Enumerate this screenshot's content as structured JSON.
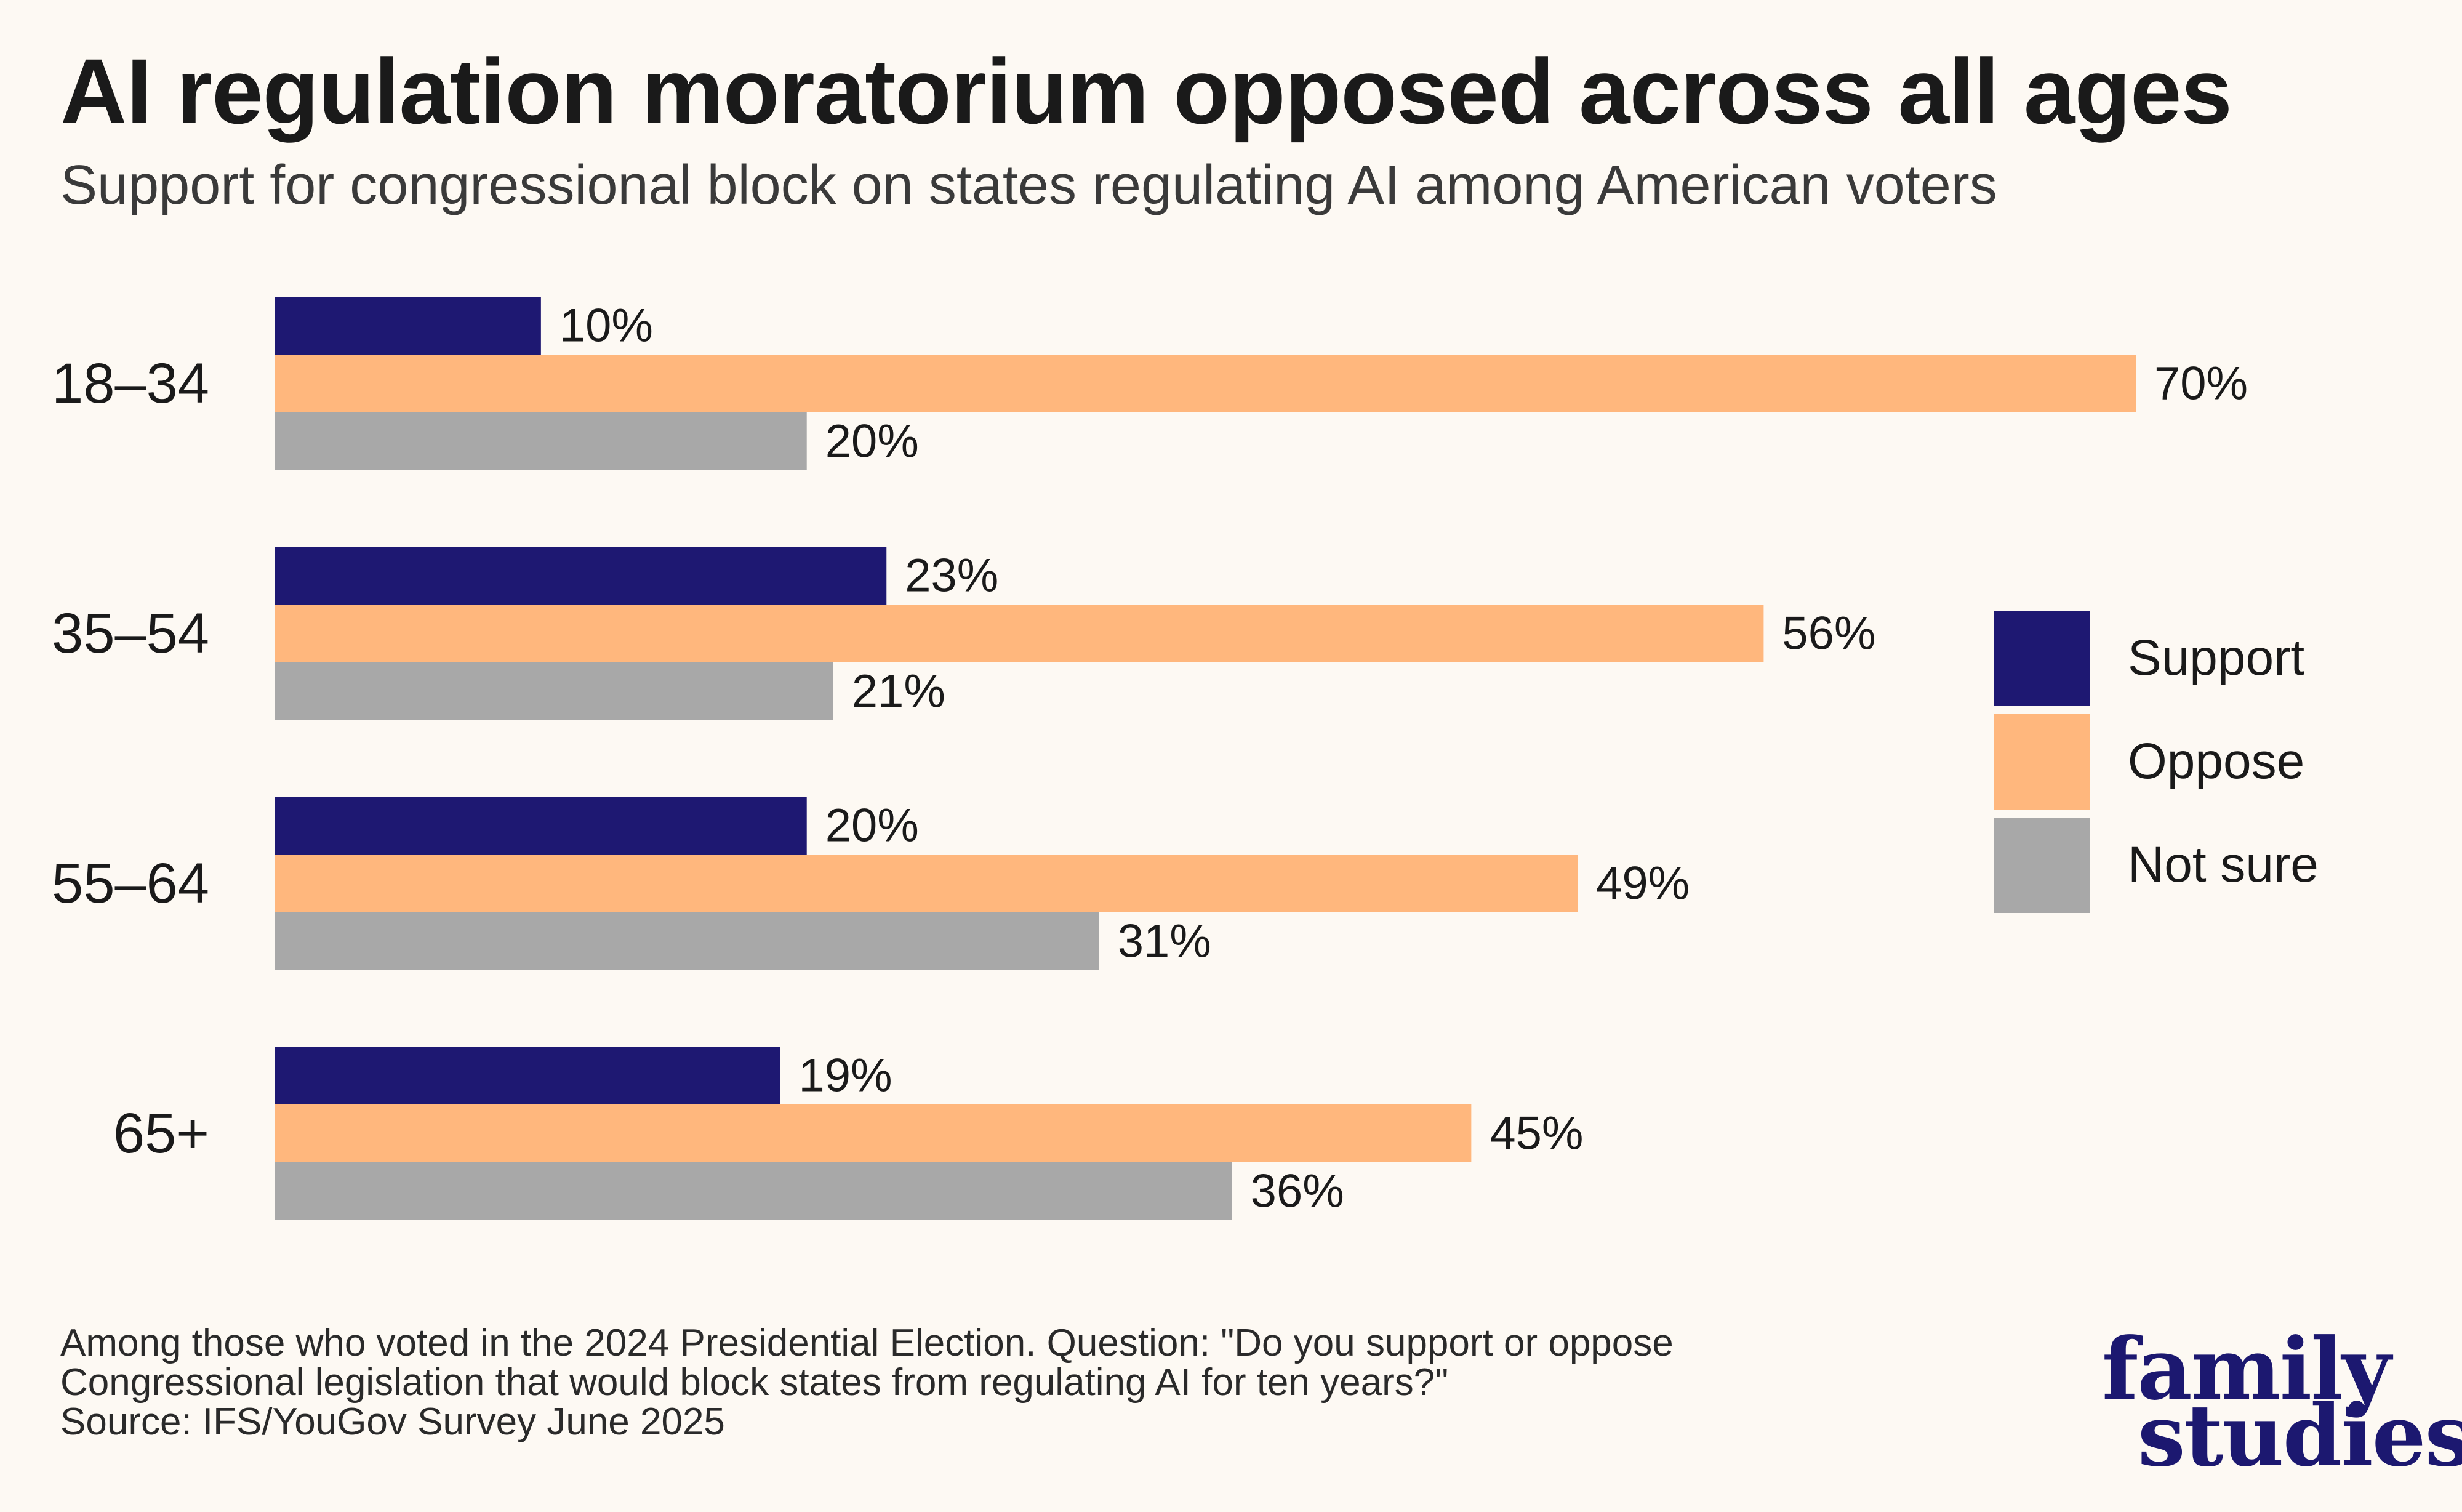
{
  "title": "AI regulation moratorium opposed across all ages",
  "subtitle": "Support for congressional block on states regulating AI among American voters",
  "footnote": [
    "Among those who voted in the 2024 Presidential Election. Question: \"Do you support or oppose",
    "Congressional legislation that would block states from regulating AI for ten years?\"",
    "Source: IFS/YouGov Survey June 2025"
  ],
  "logo": [
    "family",
    "studies"
  ],
  "colors": {
    "Support": "#1e1872",
    "Oppose": "#ffb77d",
    "Not sure": "#a8a8a8"
  },
  "chart_data": {
    "type": "bar",
    "orientation": "horizontal",
    "categories": [
      "18–34",
      "35–54",
      "55–64",
      "65+"
    ],
    "series": [
      {
        "name": "Support",
        "values": [
          10,
          23,
          20,
          19
        ]
      },
      {
        "name": "Oppose",
        "values": [
          70,
          56,
          49,
          45
        ]
      },
      {
        "name": "Not sure",
        "values": [
          20,
          21,
          31,
          36
        ]
      }
    ],
    "value_suffix": "%",
    "xlim": [
      0,
      70
    ],
    "grid": false,
    "legend_position": "right"
  }
}
